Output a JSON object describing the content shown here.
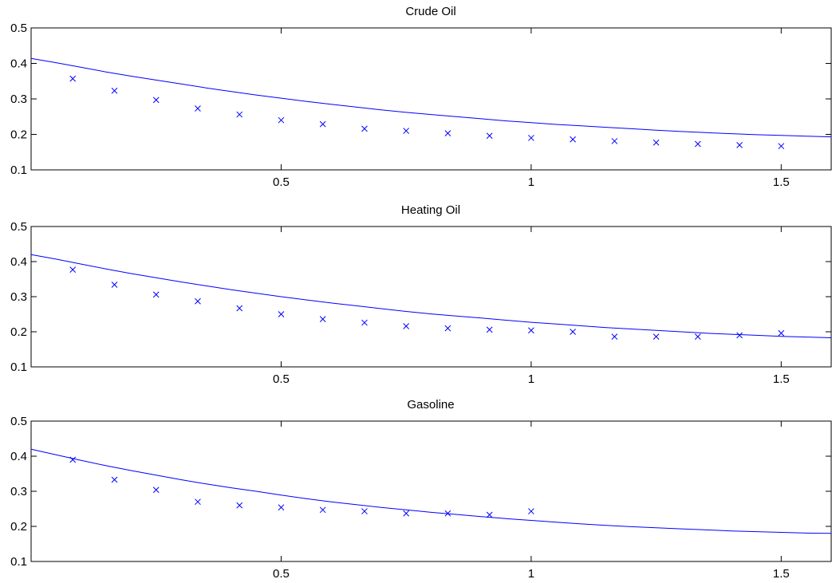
{
  "chart_data": [
    {
      "type": "line",
      "title": "Crude Oil",
      "xlabel": "",
      "ylabel": "",
      "xlim": [
        0.0,
        1.6
      ],
      "ylim": [
        0.1,
        0.5
      ],
      "xticks": [
        0.5,
        1,
        1.5
      ],
      "xtick_labels": [
        "0.5",
        "1",
        "1.5"
      ],
      "yticks": [
        0.1,
        0.2,
        0.3,
        0.4,
        0.5
      ],
      "ytick_labels": [
        "0.1",
        "0.2",
        "0.3",
        "0.4",
        "0.5"
      ],
      "grid": false,
      "color": "#0000ff",
      "series": [
        {
          "type": "line",
          "x": [
            0.0,
            0.05,
            0.1,
            0.15,
            0.2,
            0.25,
            0.3,
            0.35,
            0.4,
            0.45,
            0.5,
            0.55,
            0.6,
            0.65,
            0.7,
            0.75,
            0.8,
            0.85,
            0.9,
            0.95,
            1.0,
            1.05,
            1.1,
            1.15,
            1.2,
            1.25,
            1.3,
            1.35,
            1.4,
            1.45,
            1.5,
            1.55,
            1.6
          ],
          "y": [
            0.414,
            0.402,
            0.389,
            0.376,
            0.364,
            0.353,
            0.342,
            0.331,
            0.321,
            0.311,
            0.302,
            0.293,
            0.285,
            0.277,
            0.269,
            0.262,
            0.256,
            0.25,
            0.244,
            0.238,
            0.233,
            0.228,
            0.224,
            0.22,
            0.216,
            0.212,
            0.208,
            0.205,
            0.202,
            0.199,
            0.197,
            0.195,
            0.193
          ]
        },
        {
          "type": "scatter",
          "marker": "x",
          "x": [
            0.0833,
            0.1667,
            0.25,
            0.3333,
            0.4167,
            0.5,
            0.5833,
            0.6667,
            0.75,
            0.8333,
            0.9167,
            1.0,
            1.0833,
            1.1667,
            1.25,
            1.3333,
            1.4167,
            1.5
          ],
          "y": [
            0.357,
            0.323,
            0.297,
            0.273,
            0.256,
            0.24,
            0.229,
            0.216,
            0.21,
            0.203,
            0.196,
            0.19,
            0.186,
            0.181,
            0.177,
            0.173,
            0.17,
            0.167
          ]
        }
      ]
    },
    {
      "type": "line",
      "title": "Heating Oil",
      "xlabel": "",
      "ylabel": "",
      "xlim": [
        0.0,
        1.6
      ],
      "ylim": [
        0.1,
        0.5
      ],
      "xticks": [
        0.5,
        1,
        1.5
      ],
      "xtick_labels": [
        "0.5",
        "1",
        "1.5"
      ],
      "yticks": [
        0.1,
        0.2,
        0.3,
        0.4,
        0.5
      ],
      "ytick_labels": [
        "0.1",
        "0.2",
        "0.3",
        "0.4",
        "0.5"
      ],
      "grid": false,
      "color": "#0000ff",
      "series": [
        {
          "type": "line",
          "x": [
            0.0,
            0.05,
            0.1,
            0.15,
            0.2,
            0.25,
            0.3,
            0.35,
            0.4,
            0.45,
            0.5,
            0.55,
            0.6,
            0.65,
            0.7,
            0.75,
            0.8,
            0.85,
            0.9,
            0.95,
            1.0,
            1.05,
            1.1,
            1.15,
            1.2,
            1.25,
            1.3,
            1.35,
            1.4,
            1.45,
            1.5,
            1.55,
            1.6
          ],
          "y": [
            0.42,
            0.407,
            0.393,
            0.379,
            0.366,
            0.354,
            0.342,
            0.331,
            0.32,
            0.31,
            0.3,
            0.291,
            0.282,
            0.274,
            0.266,
            0.258,
            0.251,
            0.245,
            0.239,
            0.233,
            0.227,
            0.222,
            0.217,
            0.212,
            0.208,
            0.204,
            0.2,
            0.196,
            0.193,
            0.19,
            0.187,
            0.185,
            0.183
          ]
        },
        {
          "type": "scatter",
          "marker": "x",
          "x": [
            0.0833,
            0.1667,
            0.25,
            0.3333,
            0.4167,
            0.5,
            0.5833,
            0.6667,
            0.75,
            0.8333,
            0.9167,
            1.0,
            1.0833,
            1.1667,
            1.25,
            1.3333,
            1.4167,
            1.5
          ],
          "y": [
            0.377,
            0.334,
            0.306,
            0.287,
            0.267,
            0.25,
            0.236,
            0.226,
            0.216,
            0.21,
            0.206,
            0.204,
            0.2,
            0.186,
            0.186,
            0.186,
            0.19,
            0.196
          ]
        }
      ]
    },
    {
      "type": "line",
      "title": "Gasoline",
      "xlabel": "",
      "ylabel": "",
      "xlim": [
        0.0,
        1.6
      ],
      "ylim": [
        0.1,
        0.5
      ],
      "xticks": [
        0.5,
        1,
        1.5
      ],
      "xtick_labels": [
        "0.5",
        "1",
        "1.5"
      ],
      "yticks": [
        0.1,
        0.2,
        0.3,
        0.4,
        0.5
      ],
      "ytick_labels": [
        "0.1",
        "0.2",
        "0.3",
        "0.4",
        "0.5"
      ],
      "grid": false,
      "color": "#0000ff",
      "series": [
        {
          "type": "line",
          "x": [
            0.0,
            0.05,
            0.1,
            0.15,
            0.2,
            0.25,
            0.3,
            0.35,
            0.4,
            0.45,
            0.5,
            0.55,
            0.6,
            0.65,
            0.7,
            0.75,
            0.8,
            0.85,
            0.9,
            0.95,
            1.0,
            1.05,
            1.1,
            1.15,
            1.2,
            1.25,
            1.3,
            1.35,
            1.4,
            1.45,
            1.5,
            1.55,
            1.6
          ],
          "y": [
            0.42,
            0.404,
            0.388,
            0.373,
            0.359,
            0.346,
            0.333,
            0.321,
            0.31,
            0.3,
            0.289,
            0.279,
            0.27,
            0.262,
            0.254,
            0.247,
            0.24,
            0.234,
            0.228,
            0.222,
            0.217,
            0.212,
            0.207,
            0.203,
            0.199,
            0.196,
            0.193,
            0.19,
            0.187,
            0.185,
            0.183,
            0.181,
            0.18
          ]
        },
        {
          "type": "scatter",
          "marker": "x",
          "x": [
            0.0833,
            0.1667,
            0.25,
            0.3333,
            0.4167,
            0.5,
            0.5833,
            0.6667,
            0.75,
            0.8333,
            0.9167,
            1.0
          ],
          "y": [
            0.39,
            0.333,
            0.304,
            0.27,
            0.26,
            0.254,
            0.247,
            0.243,
            0.237,
            0.237,
            0.233,
            0.243
          ]
        }
      ]
    }
  ]
}
